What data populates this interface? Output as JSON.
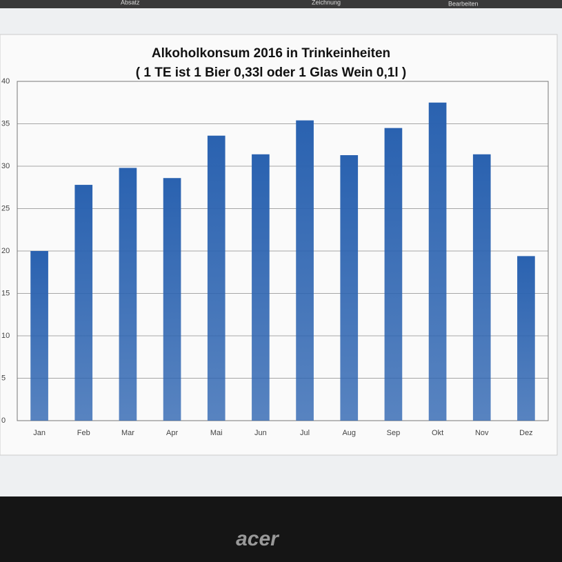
{
  "ribbon": {
    "groups": [
      "Absatz",
      "Zeichnung",
      "Bearbeiten"
    ]
  },
  "monitor_brand": "acer",
  "chart_data": {
    "type": "bar",
    "title": "Alkoholkonsum 2016 in Trinkeinheiten",
    "subtitle": "( 1 TE ist 1 Bier 0,33l oder 1 Glas Wein 0,1l )",
    "categories": [
      "Jan",
      "Feb",
      "Mar",
      "Apr",
      "Mai",
      "Jun",
      "Jul",
      "Aug",
      "Sep",
      "Okt",
      "Nov",
      "Dez"
    ],
    "values": [
      20,
      27.8,
      29.8,
      28.6,
      33.6,
      31.4,
      35.4,
      31.3,
      34.5,
      37.5,
      31.4,
      19.4
    ],
    "color": "#2a62b0",
    "ylim": [
      0,
      40
    ],
    "yticks": [
      0,
      5,
      10,
      15,
      20,
      25,
      30,
      35,
      40
    ],
    "grid": true
  }
}
